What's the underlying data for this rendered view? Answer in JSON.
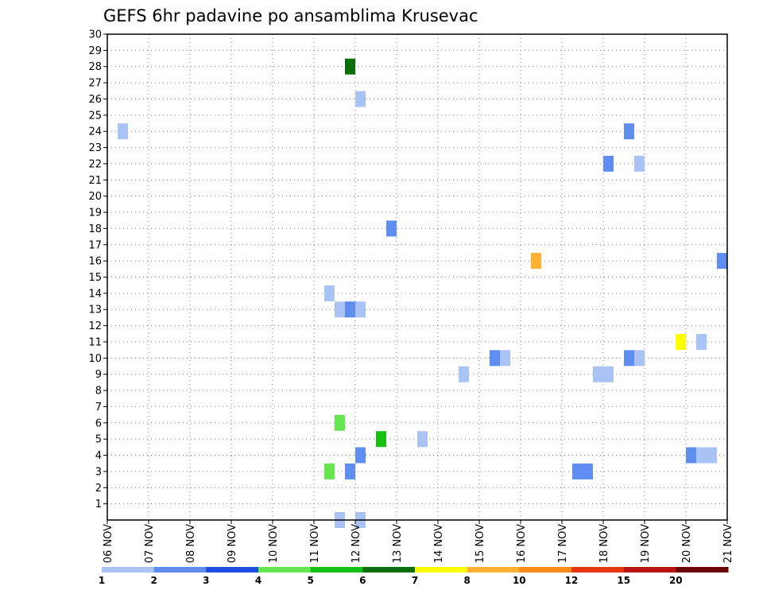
{
  "chart_data": {
    "type": "heatmap",
    "title": "GEFS 6hr padavine po ansamblima Krusevac",
    "xlabel": "",
    "ylabel": "",
    "x_ticks": [
      "06 NOV",
      "07 NOV",
      "08 NOV",
      "09 NOV",
      "10 NOV",
      "11 NOV",
      "12 NOV",
      "13 NOV",
      "14 NOV",
      "15 NOV",
      "16 NOV",
      "17 NOV",
      "18 NOV",
      "19 NOV",
      "20 NOV",
      "21 NOV"
    ],
    "x_range_days": [
      0,
      15
    ],
    "y_ticks": [
      "1",
      "2",
      "3",
      "4",
      "5",
      "6",
      "7",
      "8",
      "9",
      "10",
      "11",
      "12",
      "13",
      "14",
      "15",
      "16",
      "17",
      "18",
      "19",
      "20",
      "21",
      "22",
      "23",
      "24",
      "25",
      "26",
      "27",
      "28",
      "29",
      "30"
    ],
    "ylim": [
      0,
      30
    ],
    "grid": true,
    "cells": [
      {
        "day": 0.375,
        "member": 24,
        "category": 1
      },
      {
        "day": 5.375,
        "member": 14,
        "category": 1
      },
      {
        "day": 5.625,
        "member": 13,
        "category": 1
      },
      {
        "day": 5.875,
        "member": 13,
        "category": 2
      },
      {
        "day": 6.125,
        "member": 13,
        "category": 1
      },
      {
        "day": 5.875,
        "member": 28,
        "category": 6
      },
      {
        "day": 6.125,
        "member": 26,
        "category": 1
      },
      {
        "day": 6.875,
        "member": 18,
        "category": 2
      },
      {
        "day": 5.375,
        "member": 3,
        "category": 4
      },
      {
        "day": 5.625,
        "member": 6,
        "category": 4
      },
      {
        "day": 5.875,
        "member": 3,
        "category": 2
      },
      {
        "day": 6.125,
        "member": 4,
        "category": 2
      },
      {
        "day": 6.625,
        "member": 5,
        "category": 5
      },
      {
        "day": 7.625,
        "member": 5,
        "category": 1
      },
      {
        "day": 5.625,
        "member": 0,
        "category": 1
      },
      {
        "day": 6.125,
        "member": 0,
        "category": 1
      },
      {
        "day": 8.625,
        "member": 9,
        "category": 1
      },
      {
        "day": 9.375,
        "member": 10,
        "category": 2
      },
      {
        "day": 9.625,
        "member": 10,
        "category": 1
      },
      {
        "day": 10.375,
        "member": 16,
        "category": 8
      },
      {
        "day": 11.375,
        "member": 3,
        "category": 2
      },
      {
        "day": 11.625,
        "member": 3,
        "category": 2
      },
      {
        "day": 11.875,
        "member": 9,
        "category": 1
      },
      {
        "day": 12.125,
        "member": 9,
        "category": 1
      },
      {
        "day": 12.125,
        "member": 22,
        "category": 2
      },
      {
        "day": 12.625,
        "member": 24,
        "category": 2
      },
      {
        "day": 12.625,
        "member": 10,
        "category": 2
      },
      {
        "day": 12.875,
        "member": 10,
        "category": 1
      },
      {
        "day": 12.875,
        "member": 22,
        "category": 1
      },
      {
        "day": 13.875,
        "member": 11,
        "category": 7
      },
      {
        "day": 14.125,
        "member": 4,
        "category": 2
      },
      {
        "day": 14.375,
        "member": 4,
        "category": 1
      },
      {
        "day": 14.625,
        "member": 4,
        "category": 1
      },
      {
        "day": 14.375,
        "member": 11,
        "category": 1
      },
      {
        "day": 14.875,
        "member": 16,
        "category": 2
      }
    ],
    "legend": {
      "placement": "bottom",
      "labels": [
        "1",
        "2",
        "3",
        "4",
        "5",
        "6",
        "7",
        "8",
        "10",
        "12",
        "15",
        "20"
      ],
      "colors": [
        "#a9c3f5",
        "#5f8ef0",
        "#1f4fe0",
        "#64e64e",
        "#16c116",
        "#0a6f0a",
        "#ffff00",
        "#ffb12f",
        "#ff8c1a",
        "#e3380e",
        "#b81414",
        "#6b0505"
      ]
    }
  }
}
